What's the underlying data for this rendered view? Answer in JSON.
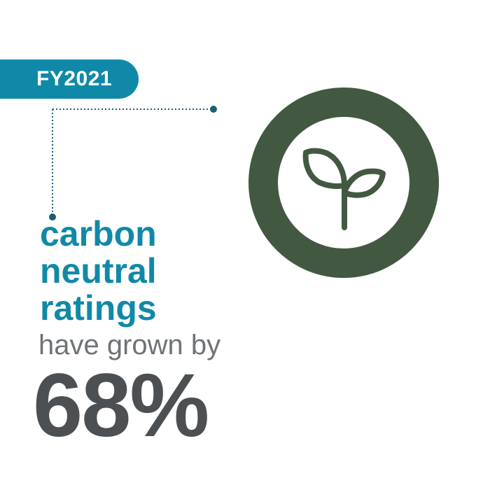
{
  "badge": {
    "year": "FY2021"
  },
  "headline": {
    "line1": "carbon",
    "line2": "neutral",
    "line3": "ratings"
  },
  "subline": "have grown by",
  "stat": {
    "value": "68%"
  },
  "colors": {
    "accent": "#1089a8",
    "ring": "#435841",
    "subtext": "#6f7376",
    "number": "#4c5053",
    "background": "#ffffff"
  },
  "icon": {
    "name": "sprout-icon"
  }
}
